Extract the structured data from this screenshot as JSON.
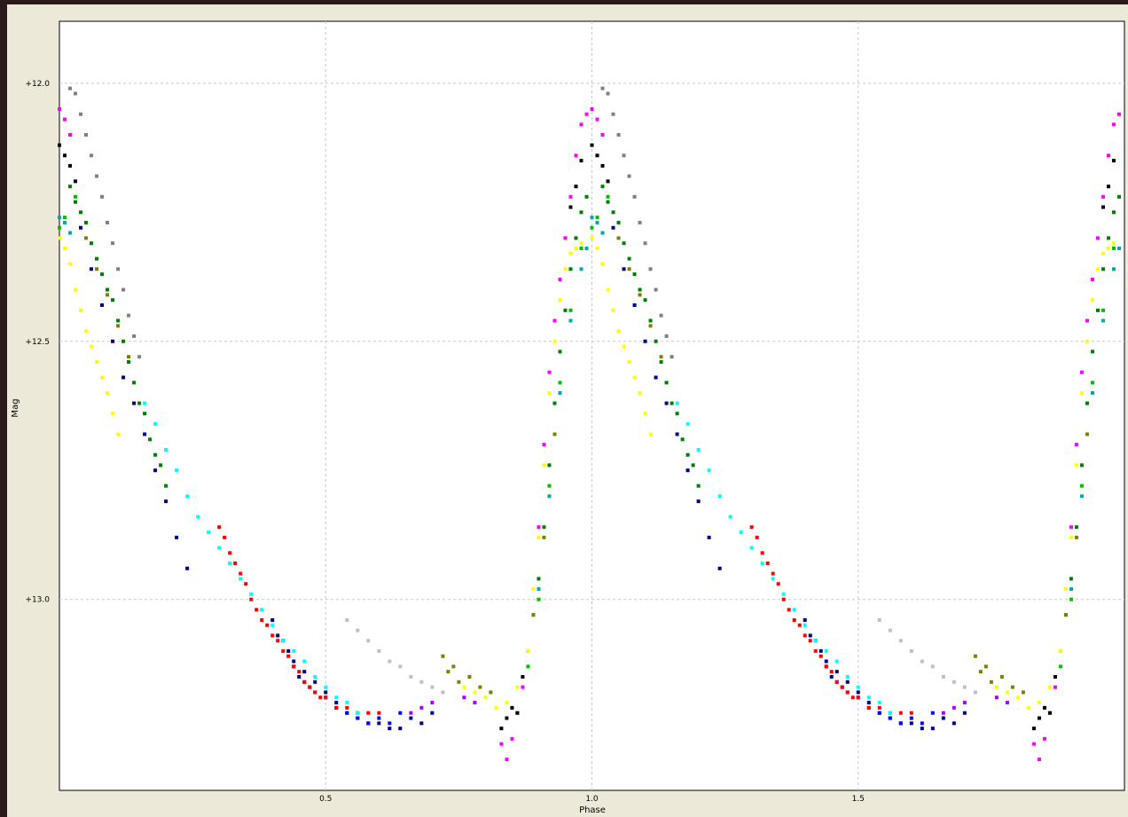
{
  "chart_data": {
    "type": "scatter",
    "title": "",
    "xlabel": "Phase",
    "ylabel": "Mag",
    "xlim": [
      0.0,
      2.0
    ],
    "ylim": [
      13.37,
      11.88
    ],
    "y_inverted": true,
    "grid": true,
    "x_ticks": [
      0.5,
      1.0,
      1.5
    ],
    "x_tick_labels": [
      "0.5",
      "1.0",
      "1.5"
    ],
    "y_ticks": [
      12.0,
      12.5,
      13.0
    ],
    "y_tick_labels": [
      "+12.0",
      "+12.5",
      "+13.0"
    ],
    "phase_repeat": 1.0,
    "series": [
      {
        "color": "#808080",
        "points": [
          [
            0.02,
            12.01
          ],
          [
            0.03,
            12.02
          ],
          [
            0.04,
            12.06
          ],
          [
            0.05,
            12.1
          ],
          [
            0.06,
            12.14
          ],
          [
            0.07,
            12.18
          ],
          [
            0.08,
            12.22
          ],
          [
            0.09,
            12.27
          ],
          [
            0.1,
            12.31
          ],
          [
            0.11,
            12.36
          ],
          [
            0.12,
            12.4
          ],
          [
            0.13,
            12.45
          ],
          [
            0.14,
            12.49
          ],
          [
            0.15,
            12.53
          ]
        ]
      },
      {
        "color": "#ff00ff",
        "points": [
          [
            0.0,
            12.05
          ],
          [
            0.01,
            12.07
          ],
          [
            0.02,
            12.1
          ],
          [
            0.83,
            13.28
          ],
          [
            0.84,
            13.31
          ],
          [
            0.85,
            13.27
          ],
          [
            0.86,
            13.22
          ],
          [
            0.87,
            13.17
          ],
          [
            0.88,
            13.1
          ],
          [
            0.89,
            13.03
          ],
          [
            0.9,
            12.86
          ],
          [
            0.91,
            12.7
          ],
          [
            0.92,
            12.56
          ],
          [
            0.93,
            12.46
          ],
          [
            0.94,
            12.38
          ],
          [
            0.95,
            12.3
          ],
          [
            0.96,
            12.22
          ],
          [
            0.97,
            12.14
          ],
          [
            0.98,
            12.08
          ],
          [
            0.99,
            12.06
          ]
        ]
      },
      {
        "color": "#000000",
        "points": [
          [
            0.0,
            12.12
          ],
          [
            0.01,
            12.14
          ],
          [
            0.02,
            12.16
          ],
          [
            0.03,
            12.19
          ],
          [
            0.83,
            13.25
          ],
          [
            0.84,
            13.23
          ],
          [
            0.85,
            13.21
          ],
          [
            0.86,
            13.22
          ],
          [
            0.87,
            13.15
          ],
          [
            0.96,
            12.24
          ],
          [
            0.97,
            12.2
          ],
          [
            0.98,
            12.15
          ]
        ]
      },
      {
        "color": "#008000",
        "points": [
          [
            0.02,
            12.2
          ],
          [
            0.03,
            12.23
          ],
          [
            0.04,
            12.25
          ],
          [
            0.05,
            12.27
          ],
          [
            0.06,
            12.31
          ],
          [
            0.07,
            12.34
          ],
          [
            0.08,
            12.37
          ],
          [
            0.09,
            12.4
          ],
          [
            0.1,
            12.42
          ],
          [
            0.11,
            12.46
          ],
          [
            0.12,
            12.5
          ],
          [
            0.13,
            12.54
          ],
          [
            0.14,
            12.58
          ],
          [
            0.15,
            12.62
          ],
          [
            0.16,
            12.64
          ],
          [
            0.17,
            12.69
          ],
          [
            0.18,
            12.72
          ],
          [
            0.19,
            12.74
          ],
          [
            0.2,
            12.78
          ],
          [
            0.9,
            12.96
          ],
          [
            0.91,
            12.86
          ],
          [
            0.92,
            12.74
          ],
          [
            0.93,
            12.62
          ],
          [
            0.94,
            12.52
          ],
          [
            0.95,
            12.44
          ],
          [
            0.96,
            12.36
          ],
          [
            0.97,
            12.3
          ],
          [
            0.98,
            12.25
          ],
          [
            0.99,
            12.22
          ]
        ]
      },
      {
        "color": "#808000",
        "points": [
          [
            0.05,
            12.3
          ],
          [
            0.07,
            12.36
          ],
          [
            0.09,
            12.41
          ],
          [
            0.11,
            12.47
          ],
          [
            0.13,
            12.53
          ],
          [
            0.72,
            13.11
          ],
          [
            0.73,
            13.14
          ],
          [
            0.74,
            13.13
          ],
          [
            0.75,
            13.16
          ],
          [
            0.77,
            13.15
          ],
          [
            0.79,
            13.17
          ],
          [
            0.81,
            13.18
          ],
          [
            0.89,
            13.03
          ],
          [
            0.91,
            12.88
          ],
          [
            0.93,
            12.68
          ]
        ]
      },
      {
        "color": "#00c000",
        "points": [
          [
            0.0,
            12.28
          ],
          [
            0.01,
            12.26
          ],
          [
            0.03,
            12.22
          ],
          [
            0.88,
            13.13
          ],
          [
            0.9,
            13.0
          ],
          [
            0.92,
            12.78
          ],
          [
            0.94,
            12.58
          ],
          [
            0.96,
            12.44
          ],
          [
            0.98,
            12.32
          ]
        ]
      },
      {
        "color": "#00aaaa",
        "points": [
          [
            0.0,
            12.26
          ],
          [
            0.01,
            12.27
          ],
          [
            0.02,
            12.29
          ],
          [
            0.9,
            12.98
          ],
          [
            0.92,
            12.8
          ],
          [
            0.94,
            12.6
          ],
          [
            0.96,
            12.46
          ],
          [
            0.98,
            12.36
          ],
          [
            0.99,
            12.32
          ]
        ]
      },
      {
        "color": "#ffff00",
        "points": [
          [
            0.0,
            12.3
          ],
          [
            0.01,
            12.32
          ],
          [
            0.02,
            12.35
          ],
          [
            0.03,
            12.4
          ],
          [
            0.04,
            12.44
          ],
          [
            0.05,
            12.48
          ],
          [
            0.06,
            12.51
          ],
          [
            0.07,
            12.54
          ],
          [
            0.08,
            12.57
          ],
          [
            0.09,
            12.6
          ],
          [
            0.1,
            12.64
          ],
          [
            0.11,
            12.68
          ],
          [
            0.76,
            13.17
          ],
          [
            0.78,
            13.18
          ],
          [
            0.8,
            13.19
          ],
          [
            0.82,
            13.21
          ],
          [
            0.84,
            13.2
          ],
          [
            0.86,
            13.17
          ],
          [
            0.88,
            13.1
          ],
          [
            0.89,
            12.98
          ],
          [
            0.9,
            12.88
          ],
          [
            0.91,
            12.74
          ],
          [
            0.92,
            12.6
          ],
          [
            0.93,
            12.5
          ],
          [
            0.94,
            12.42
          ],
          [
            0.95,
            12.36
          ],
          [
            0.96,
            12.33
          ],
          [
            0.97,
            12.32
          ],
          [
            0.98,
            12.31
          ]
        ]
      },
      {
        "color": "#000080",
        "points": [
          [
            0.04,
            12.28
          ],
          [
            0.06,
            12.36
          ],
          [
            0.08,
            12.43
          ],
          [
            0.1,
            12.5
          ],
          [
            0.12,
            12.57
          ],
          [
            0.14,
            12.62
          ],
          [
            0.16,
            12.68
          ],
          [
            0.18,
            12.75
          ],
          [
            0.2,
            12.81
          ],
          [
            0.22,
            12.88
          ],
          [
            0.24,
            12.94
          ],
          [
            0.4,
            13.04
          ],
          [
            0.41,
            13.07
          ],
          [
            0.42,
            13.08
          ],
          [
            0.43,
            13.1
          ],
          [
            0.44,
            13.12
          ],
          [
            0.45,
            13.15
          ],
          [
            0.46,
            13.14
          ],
          [
            0.47,
            13.17
          ],
          [
            0.48,
            13.16
          ],
          [
            0.5,
            13.18
          ],
          [
            0.52,
            13.2
          ],
          [
            0.54,
            13.22
          ],
          [
            0.56,
            13.23
          ],
          [
            0.58,
            13.24
          ],
          [
            0.6,
            13.24
          ],
          [
            0.62,
            13.25
          ],
          [
            0.64,
            13.25
          ],
          [
            0.66,
            13.23
          ],
          [
            0.68,
            13.24
          ],
          [
            0.7,
            13.22
          ]
        ]
      },
      {
        "color": "#0000ff",
        "points": [
          [
            0.44,
            13.13
          ],
          [
            0.46,
            13.16
          ],
          [
            0.48,
            13.18
          ],
          [
            0.5,
            13.19
          ],
          [
            0.52,
            13.21
          ],
          [
            0.54,
            13.22
          ],
          [
            0.56,
            13.23
          ],
          [
            0.58,
            13.24
          ],
          [
            0.6,
            13.23
          ],
          [
            0.62,
            13.24
          ],
          [
            0.64,
            13.22
          ]
        ]
      },
      {
        "color": "#ff0000",
        "points": [
          [
            0.3,
            12.86
          ],
          [
            0.31,
            12.88
          ],
          [
            0.32,
            12.91
          ],
          [
            0.33,
            12.93
          ],
          [
            0.34,
            12.95
          ],
          [
            0.35,
            12.97
          ],
          [
            0.36,
            13.0
          ],
          [
            0.37,
            13.02
          ],
          [
            0.38,
            13.04
          ],
          [
            0.39,
            13.05
          ],
          [
            0.4,
            13.07
          ],
          [
            0.41,
            13.08
          ],
          [
            0.42,
            13.1
          ],
          [
            0.43,
            13.11
          ],
          [
            0.44,
            13.13
          ],
          [
            0.45,
            13.14
          ],
          [
            0.46,
            13.16
          ],
          [
            0.47,
            13.17
          ],
          [
            0.48,
            13.18
          ],
          [
            0.49,
            13.19
          ],
          [
            0.5,
            13.19
          ],
          [
            0.52,
            13.21
          ],
          [
            0.54,
            13.21
          ],
          [
            0.56,
            13.22
          ],
          [
            0.58,
            13.22
          ],
          [
            0.6,
            13.22
          ]
        ]
      },
      {
        "color": "#00ffff",
        "points": [
          [
            0.16,
            12.62
          ],
          [
            0.18,
            12.66
          ],
          [
            0.2,
            12.71
          ],
          [
            0.22,
            12.75
          ],
          [
            0.24,
            12.8
          ],
          [
            0.26,
            12.84
          ],
          [
            0.28,
            12.87
          ],
          [
            0.3,
            12.9
          ],
          [
            0.32,
            12.93
          ],
          [
            0.34,
            12.96
          ],
          [
            0.36,
            12.99
          ],
          [
            0.38,
            13.02
          ],
          [
            0.4,
            13.05
          ],
          [
            0.42,
            13.08
          ],
          [
            0.44,
            13.1
          ],
          [
            0.46,
            13.12
          ],
          [
            0.48,
            13.15
          ],
          [
            0.5,
            13.17
          ],
          [
            0.52,
            13.19
          ],
          [
            0.54,
            13.2
          ],
          [
            0.56,
            13.22
          ]
        ]
      },
      {
        "color": "#c0c0c0",
        "points": [
          [
            0.54,
            13.04
          ],
          [
            0.56,
            13.06
          ],
          [
            0.58,
            13.08
          ],
          [
            0.6,
            13.1
          ],
          [
            0.62,
            13.12
          ],
          [
            0.64,
            13.13
          ],
          [
            0.66,
            13.15
          ],
          [
            0.68,
            13.16
          ],
          [
            0.7,
            13.17
          ],
          [
            0.72,
            13.18
          ]
        ]
      },
      {
        "color": "#aa00ff",
        "points": [
          [
            0.66,
            13.22
          ],
          [
            0.68,
            13.21
          ],
          [
            0.7,
            13.2
          ],
          [
            0.76,
            13.19
          ],
          [
            0.78,
            13.2
          ]
        ]
      }
    ]
  }
}
